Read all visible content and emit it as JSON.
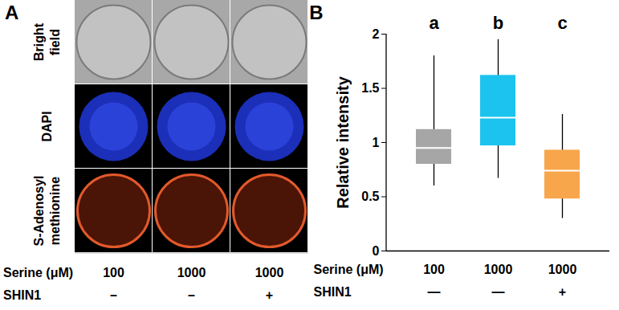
{
  "panel_a": {
    "label": "A",
    "rows": [
      "Bright field",
      "DAPI",
      "S-Adenosyl methionine"
    ],
    "conditions": [
      {
        "name": "Serine (μM)",
        "values": [
          100,
          1000,
          1000
        ]
      },
      {
        "name": "SHIN1",
        "values": [
          "–",
          "–",
          "+"
        ]
      }
    ]
  },
  "chart_data": {
    "type": "box",
    "panel_label": "B",
    "categories": [
      "a",
      "b",
      "c"
    ],
    "ylabel": "Relative intensity",
    "ylim": [
      0,
      2
    ],
    "yticks": [
      0,
      0.5,
      1,
      1.5,
      2
    ],
    "colors": [
      "#a6a6a6",
      "#1cc3ef",
      "#f8a64c"
    ],
    "min": [
      0.6,
      0.67,
      0.3
    ],
    "q1": [
      0.8,
      0.97,
      0.48
    ],
    "median": [
      0.95,
      1.23,
      0.74
    ],
    "q3": [
      1.12,
      1.62,
      0.93
    ],
    "max": [
      1.8,
      1.95,
      1.26
    ],
    "conditions": [
      {
        "name": "Serine (μM)",
        "values": [
          100,
          1000,
          1000
        ]
      },
      {
        "name": "SHIN1",
        "values": [
          "—",
          "—",
          "+"
        ]
      }
    ]
  }
}
